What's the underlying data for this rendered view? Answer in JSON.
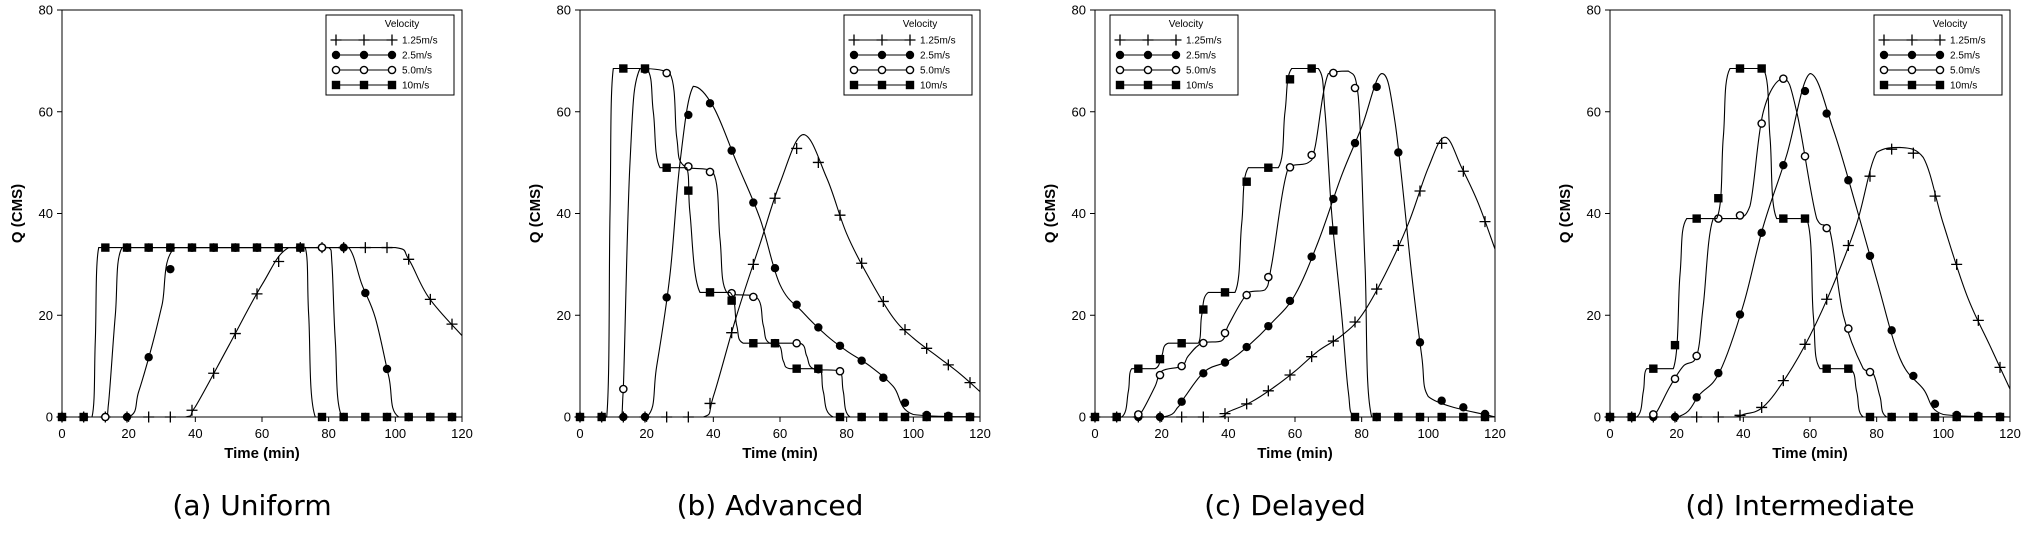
{
  "chart_data": [
    {
      "type": "line",
      "caption": "(a)  Uniform",
      "xlabel": "Time (min)",
      "ylabel": "Q (CMS)",
      "xlim": [
        0,
        120
      ],
      "ylim": [
        0,
        80
      ],
      "xticks": [
        0,
        20,
        40,
        60,
        80,
        100,
        120
      ],
      "yticks": [
        0,
        20,
        40,
        60,
        80
      ],
      "legend": {
        "title": "Velocity",
        "position": "top-right"
      },
      "series": [
        {
          "name": "1.25m/s",
          "marker": "plus",
          "x": [
            0,
            37,
            40,
            50,
            60,
            68,
            80,
            100,
            104,
            110,
            120
          ],
          "y": [
            0,
            0,
            2,
            14,
            26,
            33.3,
            33.3,
            33.3,
            31,
            23.5,
            16
          ]
        },
        {
          "name": "2.5m/s",
          "marker": "filled-circle",
          "x": [
            0,
            20,
            23,
            27,
            30,
            34,
            80,
            86,
            90,
            94,
            98,
            101,
            120
          ],
          "y": [
            0,
            0,
            5,
            14,
            22,
            33.3,
            33.3,
            33.3,
            26,
            19.5,
            8,
            0,
            0
          ]
        },
        {
          "name": "5.0m/s",
          "marker": "open-circle",
          "x": [
            0,
            13,
            14,
            16,
            18,
            80,
            81,
            82,
            84,
            120
          ],
          "y": [
            0,
            0,
            3,
            20,
            33.3,
            33.3,
            30,
            15,
            0,
            0
          ]
        },
        {
          "name": "10m/s",
          "marker": "filled-square",
          "x": [
            0,
            9,
            10,
            11,
            73,
            74,
            76,
            120
          ],
          "y": [
            0,
            0,
            15,
            33.3,
            33.3,
            20,
            0,
            0
          ]
        }
      ]
    },
    {
      "type": "line",
      "caption": "(b)  Advanced",
      "xlabel": "Time (min)",
      "ylabel": "Q (CMS)",
      "xlim": [
        0,
        120
      ],
      "ylim": [
        0,
        80
      ],
      "xticks": [
        0,
        20,
        40,
        60,
        80,
        100,
        120
      ],
      "yticks": [
        0,
        20,
        40,
        60,
        80
      ],
      "legend": {
        "title": "Velocity",
        "position": "top-right"
      },
      "series": [
        {
          "name": "1.25m/s",
          "marker": "plus",
          "x": [
            0,
            37,
            40,
            47,
            54,
            60,
            67,
            74,
            80,
            87,
            94,
            100,
            107,
            114,
            120
          ],
          "y": [
            0,
            0,
            4,
            20,
            34,
            46,
            55.5,
            47,
            36,
            27,
            19.5,
            15.5,
            12,
            8.5,
            5
          ]
        },
        {
          "name": "2.5m/s",
          "marker": "filled-circle",
          "x": [
            0,
            20,
            23,
            27,
            30,
            34,
            40,
            47,
            54,
            60,
            67,
            74,
            80,
            87,
            94,
            100,
            120
          ],
          "y": [
            0,
            0,
            10,
            28,
            50,
            65,
            61,
            50,
            39,
            26,
            20.5,
            16,
            13,
            10,
            6,
            0.5,
            0
          ]
        },
        {
          "name": "5.0m/s",
          "marker": "open-circle",
          "x": [
            0,
            12,
            13,
            15,
            18,
            27,
            29,
            31,
            40,
            42,
            44,
            53,
            55,
            57,
            66,
            68,
            70,
            78,
            79,
            81,
            120
          ],
          "y": [
            0,
            0,
            5.5,
            50,
            68.5,
            67.5,
            55,
            49.5,
            48,
            35,
            24.5,
            23.5,
            18,
            14.5,
            14.5,
            12,
            9.5,
            9,
            5,
            0,
            0
          ]
        },
        {
          "name": "10m/s",
          "marker": "filled-square",
          "x": [
            0,
            8,
            9,
            10,
            20,
            22,
            24,
            32,
            33,
            36,
            45,
            47,
            49,
            59,
            61,
            63,
            72,
            73,
            76,
            120
          ],
          "y": [
            0,
            0,
            40,
            68.5,
            68.5,
            60,
            49,
            49,
            40,
            24.5,
            24.5,
            18,
            14.5,
            14.5,
            11,
            9.5,
            9.5,
            5,
            0,
            0
          ]
        }
      ]
    },
    {
      "type": "line",
      "caption": "(c)  Delayed",
      "xlabel": "Time (min)",
      "ylabel": "Q (CMS)",
      "xlim": [
        0,
        120
      ],
      "ylim": [
        0,
        80
      ],
      "xticks": [
        0,
        20,
        40,
        60,
        80,
        100,
        120
      ],
      "yticks": [
        0,
        20,
        40,
        60,
        80
      ],
      "legend": {
        "title": "Velocity",
        "position": "top-left"
      },
      "series": [
        {
          "name": "1.25m/s",
          "marker": "plus",
          "x": [
            0,
            37,
            40,
            47,
            54,
            60,
            67,
            74,
            80,
            87,
            94,
            100,
            105,
            110,
            115,
            120
          ],
          "y": [
            0,
            0,
            1,
            3,
            6,
            9,
            13,
            16,
            20,
            28,
            38,
            49,
            55,
            49,
            42,
            33
          ]
        },
        {
          "name": "2.5m/s",
          "marker": "filled-circle",
          "x": [
            0,
            20,
            25,
            27,
            33,
            40,
            46,
            53,
            60,
            67,
            74,
            80,
            86,
            90,
            95,
            98,
            100,
            120
          ],
          "y": [
            0,
            0,
            2,
            4,
            9,
            11,
            14,
            18.5,
            24,
            34.5,
            47.5,
            57,
            67.5,
            58,
            28,
            12,
            4,
            0
          ]
        },
        {
          "name": "5.0m/s",
          "marker": "open-circle",
          "x": [
            0,
            12,
            14,
            18,
            20,
            26,
            28,
            32,
            38,
            40,
            46,
            51,
            53,
            58,
            64,
            66,
            70,
            76,
            79,
            81,
            83,
            120
          ],
          "y": [
            0,
            0,
            1,
            6,
            9,
            10,
            12,
            14.5,
            15,
            18,
            24.5,
            25,
            30,
            49,
            50,
            53,
            67.5,
            68,
            63,
            30,
            0,
            0
          ]
        },
        {
          "name": "10m/s",
          "marker": "filled-square",
          "x": [
            0,
            8,
            10,
            11,
            18,
            20,
            22,
            31,
            32,
            34,
            42,
            44,
            46,
            55,
            57,
            59,
            67,
            69,
            71,
            74,
            76,
            78,
            120
          ],
          "y": [
            0,
            0,
            5,
            9.5,
            9.5,
            12,
            14.5,
            14.5,
            20,
            24.5,
            24.5,
            38,
            49,
            49,
            60,
            68.5,
            68.5,
            60,
            40,
            20,
            5,
            0,
            0
          ]
        }
      ]
    },
    {
      "type": "line",
      "caption": "(d)  Intermediate",
      "xlabel": "Time (min)",
      "ylabel": "Q (CMS)",
      "xlim": [
        0,
        120
      ],
      "ylim": [
        0,
        80
      ],
      "xticks": [
        0,
        20,
        40,
        60,
        80,
        100,
        120
      ],
      "yticks": [
        0,
        20,
        40,
        60,
        80
      ],
      "legend": {
        "title": "Velocity",
        "position": "top-right"
      },
      "series": [
        {
          "name": "1.25m/s",
          "marker": "plus",
          "x": [
            0,
            37,
            40,
            46,
            53,
            60,
            67,
            74,
            80,
            87,
            94,
            100,
            107,
            114,
            120
          ],
          "y": [
            0,
            0,
            0.5,
            2,
            8,
            16,
            26,
            38,
            52,
            53,
            51,
            38,
            24,
            14,
            5.5
          ]
        },
        {
          "name": "2.5m/s",
          "marker": "filled-circle",
          "x": [
            0,
            20,
            27,
            33,
            40,
            46,
            53,
            60,
            67,
            74,
            80,
            87,
            94,
            100,
            120
          ],
          "y": [
            0,
            0,
            4.5,
            9,
            22,
            37.5,
            51.5,
            67.5,
            56.5,
            41,
            27,
            11.5,
            5.5,
            0.5,
            0
          ]
        },
        {
          "name": "5.0m/s",
          "marker": "open-circle",
          "x": [
            0,
            12,
            14,
            18,
            22,
            26,
            28,
            31,
            38,
            42,
            46,
            52,
            56,
            62,
            66,
            70,
            76,
            79,
            81,
            83,
            120
          ],
          "y": [
            0,
            0,
            1,
            6,
            10,
            12,
            22,
            39,
            39,
            41.5,
            60,
            66.5,
            60,
            39,
            36.5,
            20,
            9.5,
            8.5,
            4,
            0,
            0
          ]
        },
        {
          "name": "10m/s",
          "marker": "filled-square",
          "x": [
            0,
            8,
            10,
            11,
            19,
            21,
            23,
            32,
            34,
            36,
            46,
            48,
            50,
            59,
            61,
            63,
            72,
            74,
            76,
            120
          ],
          "y": [
            0,
            0,
            5,
            9.5,
            9.5,
            28,
            39,
            39,
            55,
            68.5,
            68.5,
            55,
            39,
            39,
            20,
            9.5,
            9.5,
            5,
            0,
            0
          ]
        }
      ]
    }
  ]
}
